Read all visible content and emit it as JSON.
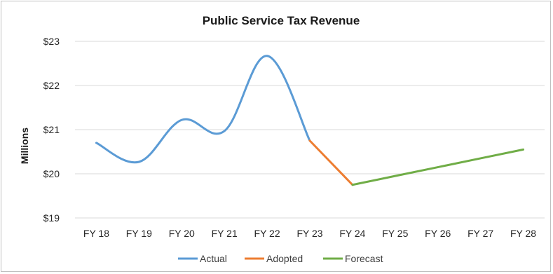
{
  "chart_data": {
    "type": "line",
    "title": "Public Service Tax Revenue",
    "xlabel": "",
    "ylabel": "Millions",
    "categories": [
      "FY 18",
      "FY 19",
      "FY 20",
      "FY 21",
      "FY 22",
      "FY 23",
      "FY 24",
      "FY 25",
      "FY 26",
      "FY 27",
      "FY 28"
    ],
    "y_tick_labels": [
      "$19",
      "$20",
      "$21",
      "$22",
      "$23"
    ],
    "y_ticks": [
      19,
      20,
      21,
      22,
      23
    ],
    "ylim": [
      19,
      23
    ],
    "grid": true,
    "legend_position": "bottom",
    "series": [
      {
        "name": "Actual",
        "color": "#5b9bd5",
        "x": [
          "FY 18",
          "FY 19",
          "FY 20",
          "FY 21",
          "FY 22",
          "FY 23"
        ],
        "values": [
          20.7,
          20.27,
          21.22,
          20.97,
          22.67,
          20.75
        ]
      },
      {
        "name": "Adopted",
        "color": "#ed7d31",
        "x": [
          "FY 23",
          "FY 24"
        ],
        "values": [
          20.75,
          19.75
        ]
      },
      {
        "name": "Forecast",
        "color": "#70ad47",
        "x": [
          "FY 24",
          "FY 25",
          "FY 26",
          "FY 27",
          "FY 28"
        ],
        "values": [
          19.75,
          19.95,
          20.15,
          20.35,
          20.55
        ]
      }
    ]
  }
}
